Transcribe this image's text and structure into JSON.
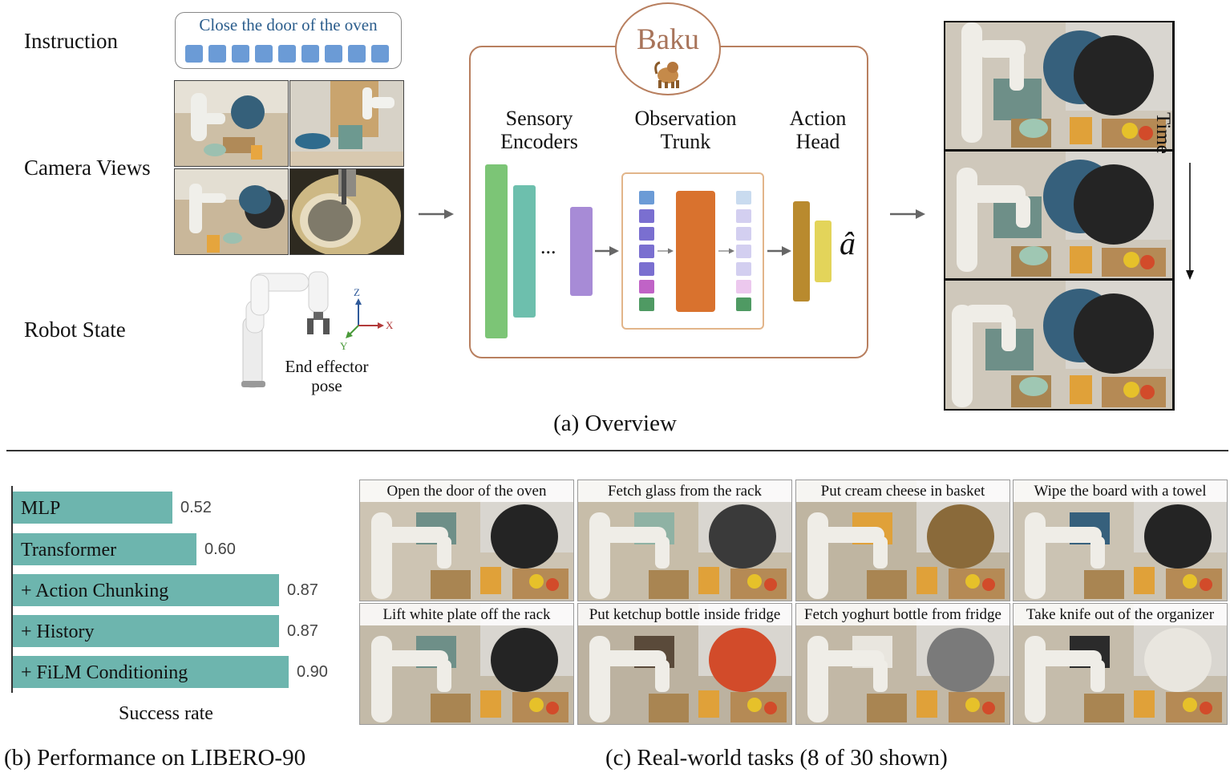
{
  "overview": {
    "left_labels": {
      "instruction": "Instruction",
      "camera_views": "Camera Views",
      "robot_state": "Robot State"
    },
    "instruction_text": "Close the door of the oven",
    "end_effector": {
      "line1": "End effector",
      "line2": "pose"
    },
    "axes": {
      "z": "Z",
      "x": "X",
      "y": "Y"
    },
    "baku": {
      "title": "Baku",
      "sensory": {
        "line1": "Sensory",
        "line2": "Encoders"
      },
      "observation": {
        "line1": "Observation",
        "line2": "Trunk"
      },
      "action": {
        "line1": "Action",
        "line2": "Head"
      },
      "ellipsis": "...",
      "output_symbol": "â"
    },
    "time_label": "Time",
    "caption": "(a) Overview"
  },
  "performance": {
    "caption": "(b) Performance on LIBERO-90",
    "xlabel": "Success rate"
  },
  "tasks": {
    "caption": "(c) Real-world tasks (8 of 30 shown)",
    "items": [
      "Open the door of the oven",
      "Fetch glass from the rack",
      "Put cream cheese in basket",
      "Wipe the board with a towel",
      "Lift white plate off the rack",
      "Put ketchup bottle inside fridge",
      "Fetch yoghurt bottle from fridge",
      "Take knife out of the organizer"
    ]
  },
  "chart_data": {
    "type": "bar",
    "orientation": "horizontal",
    "categories": [
      "MLP",
      "Transformer",
      "+ Action Chunking",
      "+ History",
      "+ FiLM Conditioning"
    ],
    "values": [
      0.52,
      0.6,
      0.87,
      0.87,
      0.9
    ],
    "value_labels": [
      "0.52",
      "0.60",
      "0.87",
      "0.87",
      "0.90"
    ],
    "xlabel": "Success rate",
    "color": "#6db5ae"
  },
  "colors": {
    "baku_border": "#b87f5f",
    "sensory_1": "#7cc576",
    "sensory_2": "#6dbfad",
    "sensory_3": "#a78bd6",
    "trunk": "#d9722e",
    "action_1": "#b98a2e",
    "action_2": "#e3d45a",
    "token": "#6b9bd6"
  }
}
